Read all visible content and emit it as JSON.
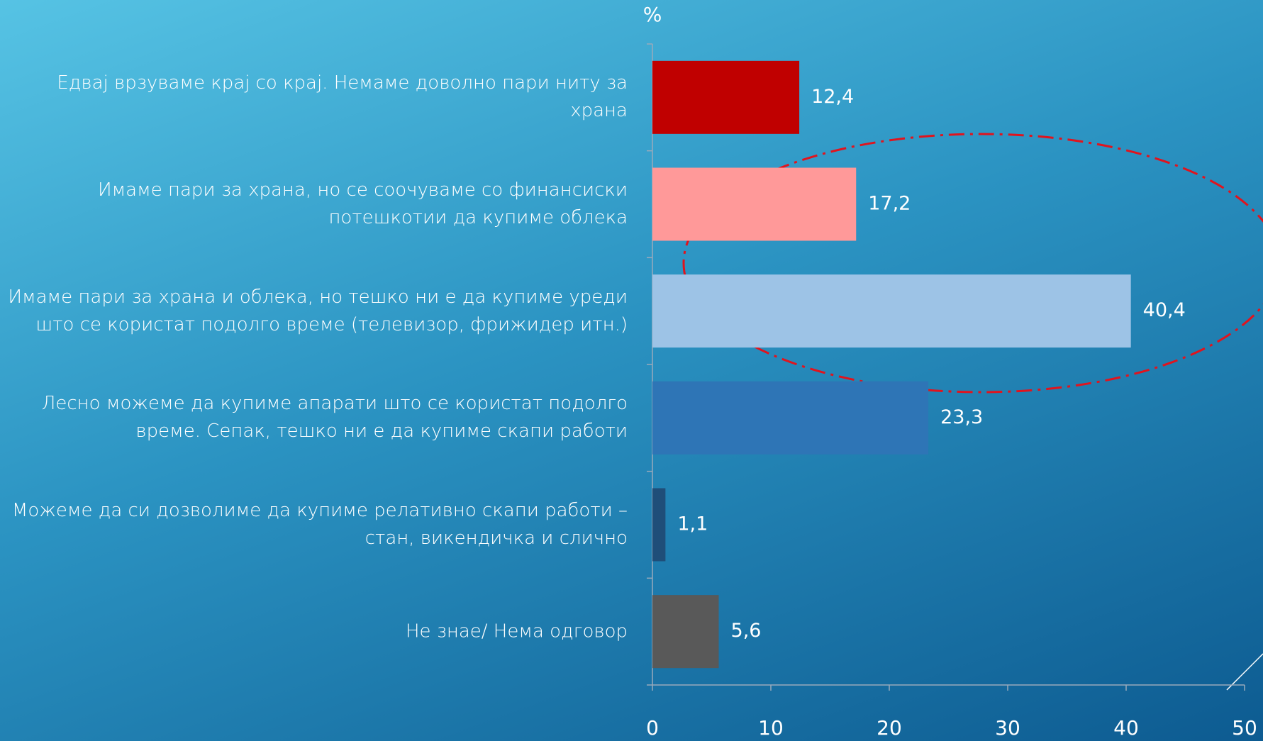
{
  "chart_data": {
    "type": "bar",
    "orientation": "horizontal",
    "x_label": "%",
    "categories": [
      "Едвај врзуваме крај со крај. Немаме доволно пари ниту за храна",
      "Имаме пари за храна, но се соочуваме со финансиски потешкотии да купиме облека",
      "Имаме пари за храна и облека, но тешко ни е да купиме уреди што се користат подолго време (телевизор, фрижидер итн.)",
      "Лесно можеме да купиме апарати што се користат подолго време. Сепак, тешко ни е да купиме скапи работи",
      "Можеме да си дозволиме да купиме релативно скапи работи – стан, викендичка и слично",
      "Не знае/ Нема одговор"
    ],
    "values": [
      12.4,
      17.2,
      40.4,
      23.3,
      1.1,
      5.6
    ],
    "value_labels": [
      "12,4",
      "17,2",
      "40,4",
      "23,3",
      "1,1",
      "5,6"
    ],
    "colors": [
      "#c00000",
      "#ff9999",
      "#9dc3e6",
      "#2e75b6",
      "#1f4e79",
      "#595959"
    ],
    "xlim": [
      0,
      50
    ],
    "xticks": [
      0,
      10,
      20,
      30,
      40,
      50
    ]
  }
}
